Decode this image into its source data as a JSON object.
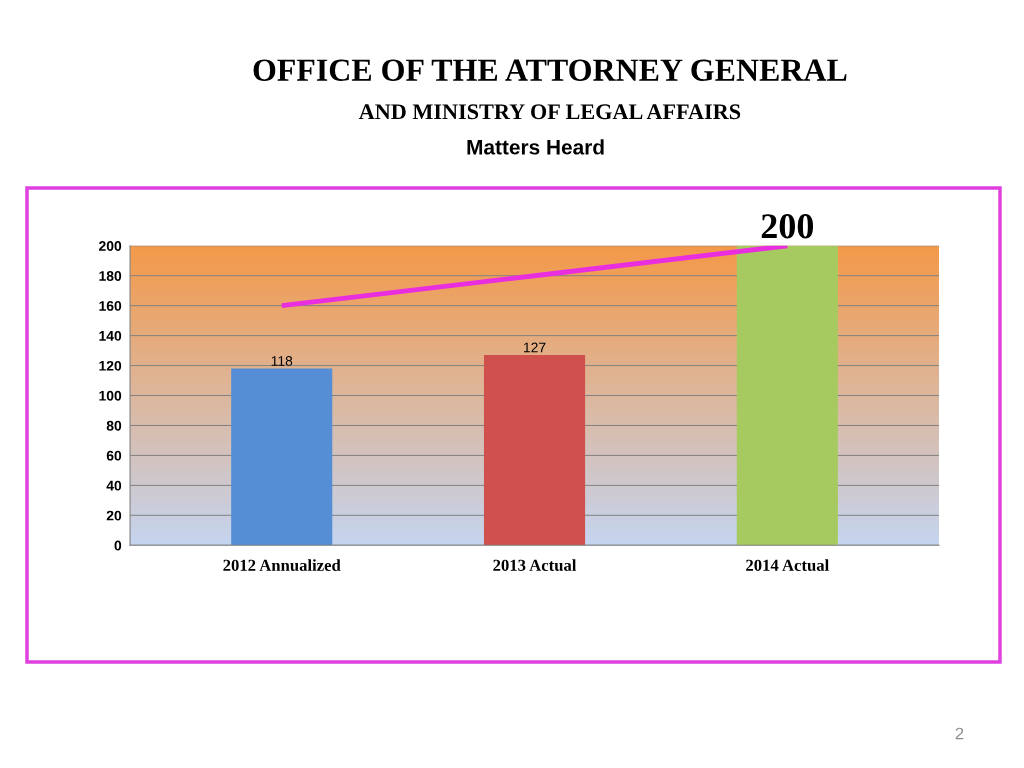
{
  "chart_data": {
    "type": "bar",
    "title": "OFFICE OF THE ATTORNEY GENERAL\nAND MINISTRY OF LEGAL AFFAIRS",
    "subtitle": "Matters Heard",
    "categories": [
      "2012 Annualized",
      "2013 Actual",
      "2014 Actual"
    ],
    "series": [
      {
        "colors": [
          "#558ed5",
          "#d0504d",
          "#a6ca60"
        ],
        "values": [
          118,
          127,
          200
        ],
        "value_labels": [
          "118",
          "127",
          "200"
        ]
      },
      {
        "type": "line",
        "color": "#e92ee0",
        "values": [
          160,
          180,
          200
        ],
        "marker": "none",
        "line_style": "solid"
      }
    ],
    "ylim": [
      0,
      200
    ],
    "yticks": [
      0,
      20,
      40,
      60,
      80,
      100,
      120,
      140,
      160,
      180,
      200
    ],
    "grid": "y",
    "legend": false,
    "annotations": [
      "2"
    ]
  }
}
